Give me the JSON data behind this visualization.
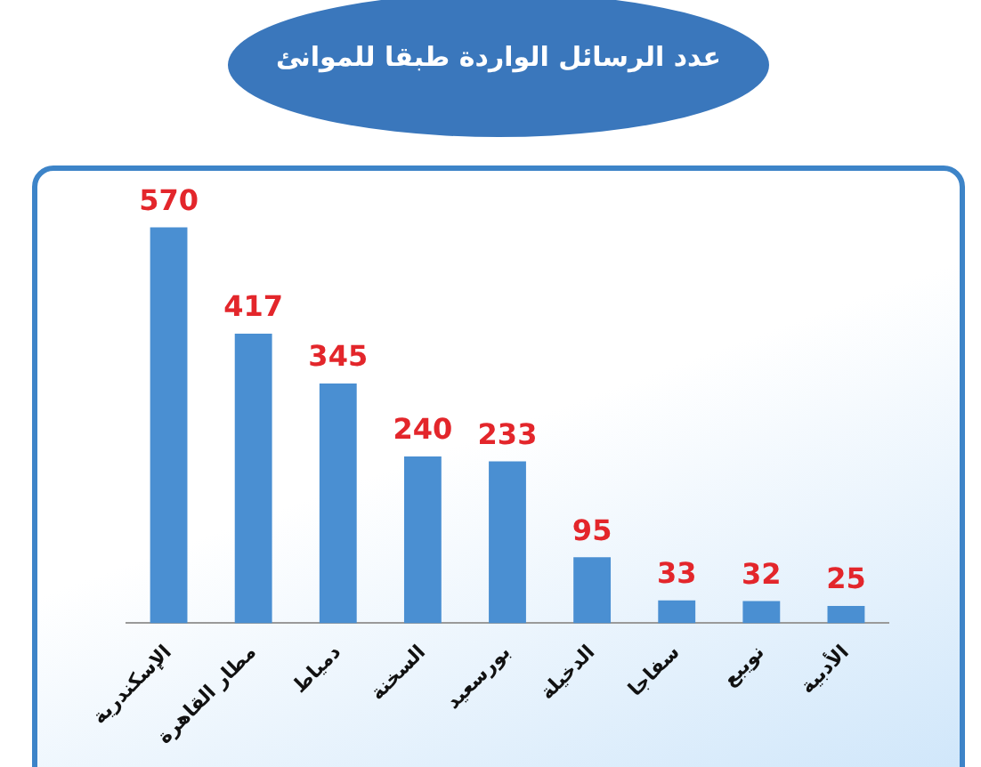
{
  "chart_data": {
    "type": "bar",
    "title": "عدد الرسائل الواردة طبقا للموانئ",
    "categories": [
      "الإسكندرية",
      "مطار القاهرة",
      "دمياط",
      "السخنة",
      "بورسعيد",
      "الدخيلة",
      "سفاجا",
      "نويبع",
      "الأدبية"
    ],
    "values": [
      570,
      417,
      345,
      240,
      233,
      95,
      33,
      32,
      25
    ],
    "color": "#4a8fd2",
    "data_labels": true,
    "tick_labels": "x"
  }
}
